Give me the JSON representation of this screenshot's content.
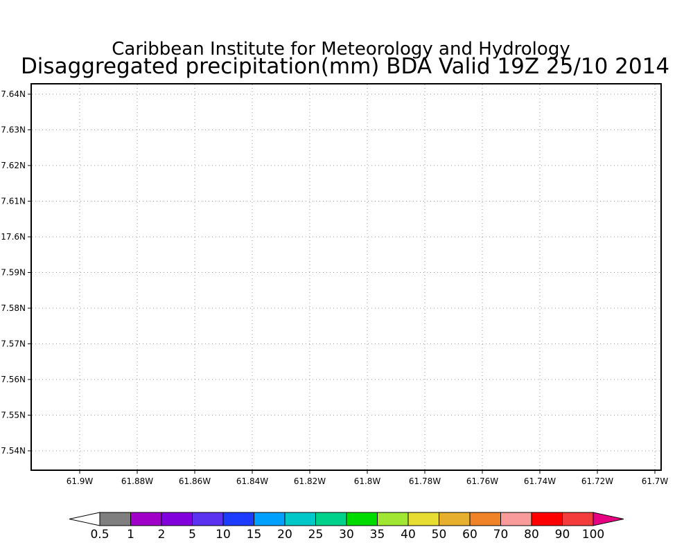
{
  "title": "Caribbean Institute for Meteorology and Hydrology",
  "subtitle": "Disaggregated precipitation(mm) BDA Valid 19Z 25/10 2014",
  "map": {
    "lon_ticks": [
      "61.9W",
      "61.88W",
      "61.86W",
      "61.84W",
      "61.82W",
      "61.8W",
      "61.78W",
      "61.76W",
      "61.74W",
      "61.72W",
      "61.7W"
    ],
    "lat_ticks": [
      "7.64N",
      "7.63N",
      "7.62N",
      "7.61N",
      "17.6N",
      "7.59N",
      "7.58N",
      "7.57N",
      "7.56N",
      "7.55N",
      "7.54N"
    ],
    "grid": true,
    "data": "none"
  },
  "colorbar": {
    "labels": [
      "0.5",
      "1",
      "2",
      "5",
      "10",
      "15",
      "20",
      "25",
      "30",
      "35",
      "40",
      "50",
      "60",
      "70",
      "80",
      "90",
      "100"
    ],
    "colors": [
      "#7f7f7f",
      "#a000c8",
      "#8200dc",
      "#5a32f0",
      "#1e3cff",
      "#00a0ff",
      "#00c8c8",
      "#00d28c",
      "#00dc00",
      "#a0e632",
      "#e6dc32",
      "#e6af2d",
      "#f08228",
      "#fa9b9b",
      "#ff0000",
      "#f53c3c",
      "#e60082"
    ],
    "under_color": "#ffffff",
    "over_color": "#e60082"
  }
}
